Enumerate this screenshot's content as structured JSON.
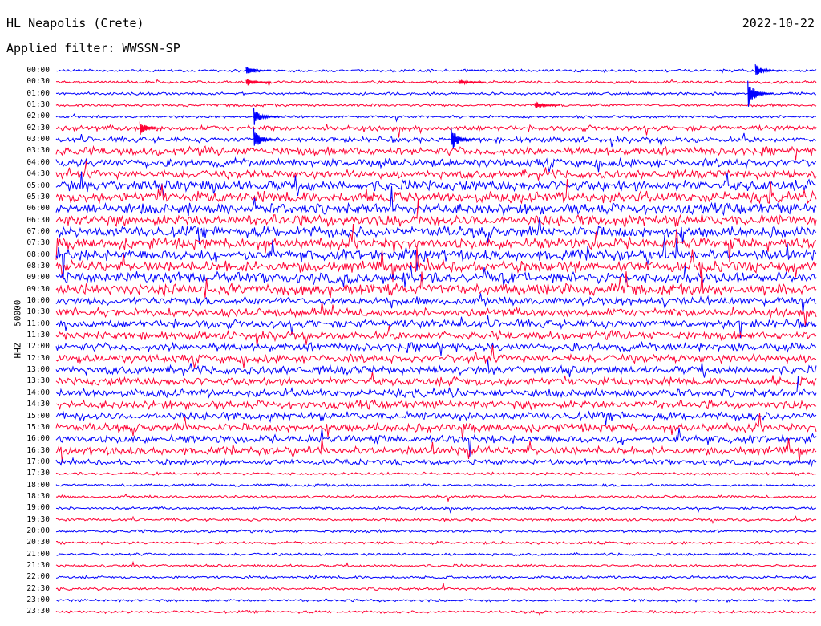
{
  "header": {
    "station": "HL Neapolis (Crete)",
    "filter": "Applied filter: WWSSN-SP",
    "date": "2022-10-22",
    "channel": "HHZ - 50000"
  },
  "colors": {
    "trace_a": "#0000ff",
    "trace_b": "#ff0033"
  },
  "chart_data": {
    "type": "line",
    "title": "HL Neapolis (Crete)",
    "subtitle": "Applied filter: WWSSN-SP",
    "ylabel": "HHZ - 50000",
    "tick_labels": [
      "00:00",
      "00:30",
      "01:00",
      "01:30",
      "02:00",
      "02:30",
      "03:00",
      "03:30",
      "04:00",
      "04:30",
      "05:00",
      "05:30",
      "06:00",
      "06:30",
      "07:00",
      "07:30",
      "08:00",
      "08:30",
      "09:00",
      "09:30",
      "10:00",
      "10:30",
      "11:00",
      "11:30",
      "12:00",
      "12:30",
      "13:00",
      "13:30",
      "14:00",
      "14:30",
      "15:00",
      "15:30",
      "16:00",
      "16:30",
      "17:00",
      "17:30",
      "18:00",
      "18:30",
      "19:00",
      "19:30",
      "20:00",
      "20:30",
      "21:00",
      "21:30",
      "22:00",
      "22:30",
      "23:00",
      "23:30"
    ],
    "series_colors_alternating": [
      "#0000ff",
      "#ff0033"
    ],
    "noise_level": [
      1,
      1,
      1,
      1,
      1,
      2,
      2,
      3,
      3,
      3,
      4,
      4,
      4,
      4,
      4,
      4,
      4,
      4,
      4,
      4,
      3,
      3,
      3,
      3,
      3,
      3,
      3,
      3,
      3,
      3,
      3,
      3,
      3,
      3,
      2,
      1,
      1,
      1,
      1,
      1,
      1,
      1,
      1,
      1,
      1,
      1,
      1,
      1
    ],
    "events": [
      {
        "row": 0,
        "t": 0.25,
        "amp": 5
      },
      {
        "row": 0,
        "t": 0.92,
        "amp": 6
      },
      {
        "row": 1,
        "t": 0.25,
        "amp": 4
      },
      {
        "row": 1,
        "t": 0.53,
        "amp": 3
      },
      {
        "row": 2,
        "t": 0.91,
        "amp": 12
      },
      {
        "row": 3,
        "t": 0.63,
        "amp": 4
      },
      {
        "row": 4,
        "t": 0.26,
        "amp": 8
      },
      {
        "row": 5,
        "t": 0.11,
        "amp": 6
      },
      {
        "row": 6,
        "t": 0.26,
        "amp": 10
      },
      {
        "row": 6,
        "t": 0.52,
        "amp": 10
      }
    ]
  }
}
